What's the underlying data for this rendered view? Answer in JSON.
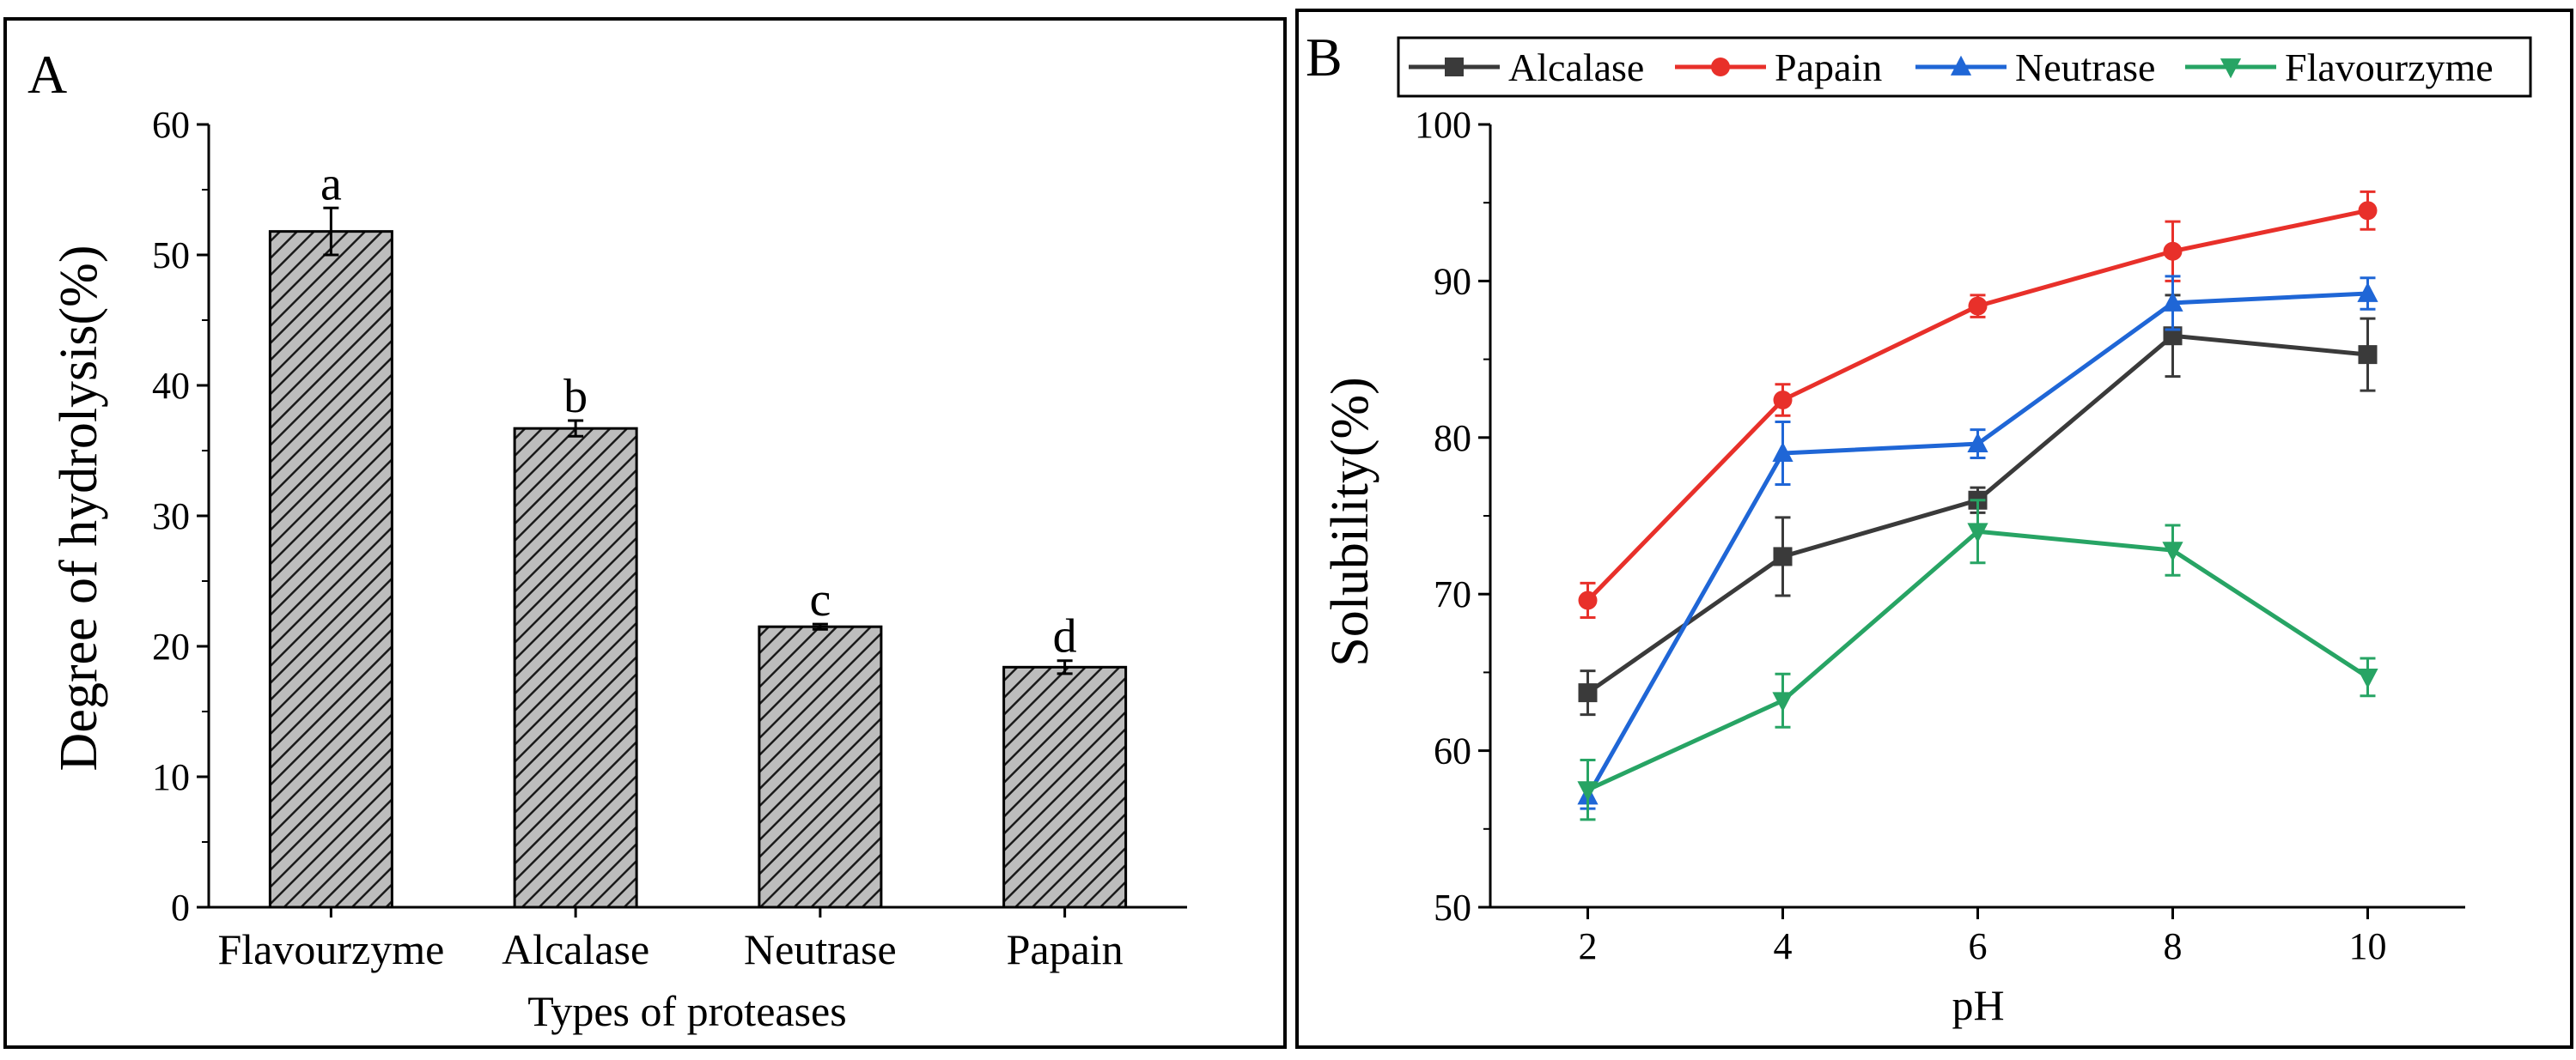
{
  "colors": {
    "frame": "#000000",
    "bar_fill": "#bdbdbd",
    "alcalase": "#3a3a3a",
    "papain": "#e8302a",
    "neutrase": "#1f66d6",
    "flavourzyme": "#27a464"
  },
  "chart_data": [
    {
      "panel_label": "A",
      "type": "bar",
      "title": "",
      "xlabel": "Types of proteases",
      "ylabel": "Degree of hydrolysis(%)",
      "ylim": [
        0,
        60
      ],
      "yticks": [
        "0",
        "10",
        "20",
        "30",
        "40",
        "50",
        "60"
      ],
      "categories": [
        "Flavourzyme",
        "Alcalase",
        "Neutrase",
        "Papain"
      ],
      "values": [
        51.8,
        36.7,
        21.5,
        18.4
      ],
      "errors": [
        1.8,
        0.6,
        0.2,
        0.5
      ],
      "significance": [
        "a",
        "b",
        "c",
        "d"
      ],
      "hatch": "diagonal"
    },
    {
      "panel_label": "B",
      "type": "line",
      "title": "",
      "xlabel": "pH",
      "ylabel": "Solubility(%)",
      "xlim": [
        1,
        11
      ],
      "ylim": [
        50,
        100
      ],
      "x": [
        2,
        4,
        6,
        8,
        10
      ],
      "xticks": [
        "2",
        "4",
        "6",
        "8",
        "10"
      ],
      "yticks": [
        "50",
        "60",
        "70",
        "80",
        "90",
        "100"
      ],
      "legend_position": "top",
      "series": [
        {
          "name": "Alcalase",
          "marker": "square",
          "color_key": "alcalase",
          "values": [
            63.7,
            72.4,
            76.0,
            86.5,
            85.3
          ],
          "errors": [
            1.4,
            2.5,
            0.8,
            2.6,
            2.3
          ]
        },
        {
          "name": "Papain",
          "marker": "circle",
          "color_key": "papain",
          "values": [
            69.6,
            82.4,
            88.4,
            91.9,
            94.5
          ],
          "errors": [
            1.1,
            1.0,
            0.7,
            1.9,
            1.2
          ]
        },
        {
          "name": "Neutrase",
          "marker": "triangle-up",
          "color_key": "neutrase",
          "values": [
            57.1,
            79.0,
            79.6,
            88.6,
            89.2
          ],
          "errors": [
            0.8,
            2.0,
            0.9,
            1.7,
            1.0
          ]
        },
        {
          "name": "Flavourzyme",
          "marker": "triangle-down",
          "color_key": "flavourzyme",
          "values": [
            57.5,
            63.2,
            74.0,
            72.8,
            64.7
          ],
          "errors": [
            1.9,
            1.7,
            2.0,
            1.6,
            1.2
          ]
        }
      ]
    }
  ]
}
